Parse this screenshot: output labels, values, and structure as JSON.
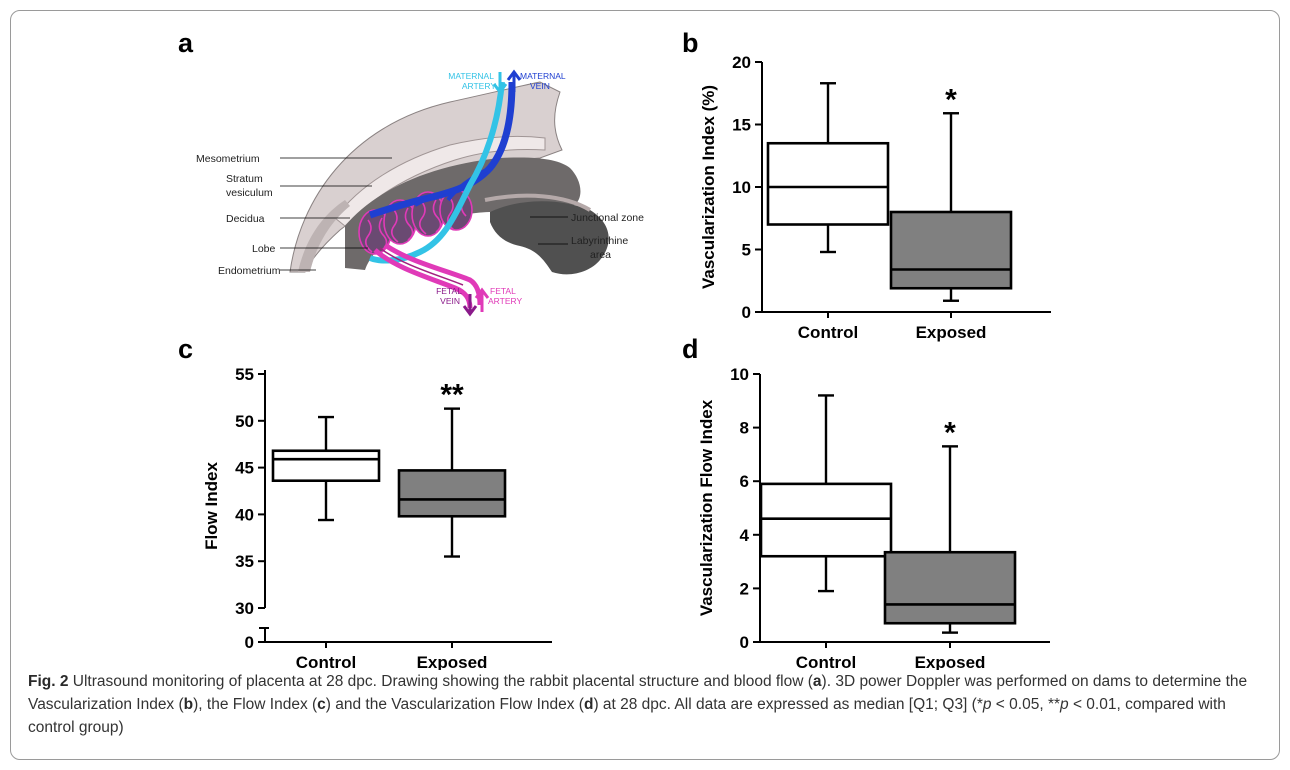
{
  "colors": {
    "control_fill": "#ffffff",
    "exposed_fill": "#808080",
    "maternal_artery": "#33c3e6",
    "maternal_vein": "#1f3fd1",
    "fetal": "#e03ab8",
    "tissue_dark": "#6e6a6a",
    "tissue_light": "#d8cfcf"
  },
  "panel_a": {
    "letter": "a",
    "labels": {
      "maternal_artery_1": "MATERNAL",
      "maternal_artery_2": "ARTERY",
      "maternal_vein_1": "MATERNAL",
      "maternal_vein_2": "VEIN",
      "mesometrium": "Mesometrium",
      "stratum_1": "Stratum",
      "stratum_2": "vesiculum",
      "decidua": "Decidua",
      "lobe": "Lobe",
      "endometrium": "Endometrium",
      "junctional": "Junctional zone",
      "labyrinth_1": "Labyrinthine",
      "labyrinth_2": "area",
      "fetal_vein_1": "FETAL",
      "fetal_vein_2": "VEIN",
      "fetal_artery_1": "FETAL",
      "fetal_artery_2": "ARTERY"
    }
  },
  "chart_data": [
    {
      "panel": "b",
      "type": "box",
      "ylabel": "Vascularization Index (%)",
      "categories": [
        "Control",
        "Exposed"
      ],
      "ylim": [
        0,
        20
      ],
      "yticks": [
        0,
        5,
        10,
        15,
        20
      ],
      "boxes": [
        {
          "min": 4.8,
          "q1": 7.0,
          "median": 10.0,
          "q3": 13.5,
          "max": 18.3
        },
        {
          "min": 0.9,
          "q1": 1.9,
          "median": 3.4,
          "q3": 8.0,
          "max": 15.9
        }
      ],
      "annotations": [
        "",
        "*"
      ]
    },
    {
      "panel": "c",
      "type": "box",
      "ylabel": "Flow Index",
      "categories": [
        "Control",
        "Exposed"
      ],
      "axis_break": true,
      "yticks": [
        0,
        30,
        35,
        40,
        45,
        50,
        55
      ],
      "boxes": [
        {
          "min": 39.4,
          "q1": 43.6,
          "median": 45.9,
          "q3": 46.8,
          "max": 50.4
        },
        {
          "min": 35.5,
          "q1": 39.8,
          "median": 41.6,
          "q3": 44.7,
          "max": 51.3
        }
      ],
      "annotations": [
        "",
        "**"
      ]
    },
    {
      "panel": "d",
      "type": "box",
      "ylabel": "Vascularization Flow Index",
      "categories": [
        "Control",
        "Exposed"
      ],
      "ylim": [
        0,
        10
      ],
      "yticks": [
        0,
        2,
        4,
        6,
        8,
        10
      ],
      "boxes": [
        {
          "min": 1.9,
          "q1": 3.2,
          "median": 4.6,
          "q3": 5.9,
          "max": 9.2
        },
        {
          "min": 0.35,
          "q1": 0.7,
          "median": 1.4,
          "q3": 3.35,
          "max": 7.3
        }
      ],
      "annotations": [
        "",
        "*"
      ]
    }
  ],
  "caption": {
    "fig_label": "Fig. 2",
    "t1": " Ultrasound monitoring of placenta at 28 dpc. Drawing showing the rabbit placental structure and blood flow (",
    "a": "a",
    "t2": "). 3D power Doppler was performed on dams to determine the Vascularization Index (",
    "b": "b",
    "t3": "), the Flow Index (",
    "c": "c",
    "t4": ") and the Vascularization Flow Index (",
    "d": "d",
    "t5": ") at 28 dpc. All data are expressed as median [Q1; Q3] (*",
    "p1": "p",
    "t6": " < 0.05, **",
    "p2": "p",
    "t7": " < 0.01, compared with control group)"
  }
}
